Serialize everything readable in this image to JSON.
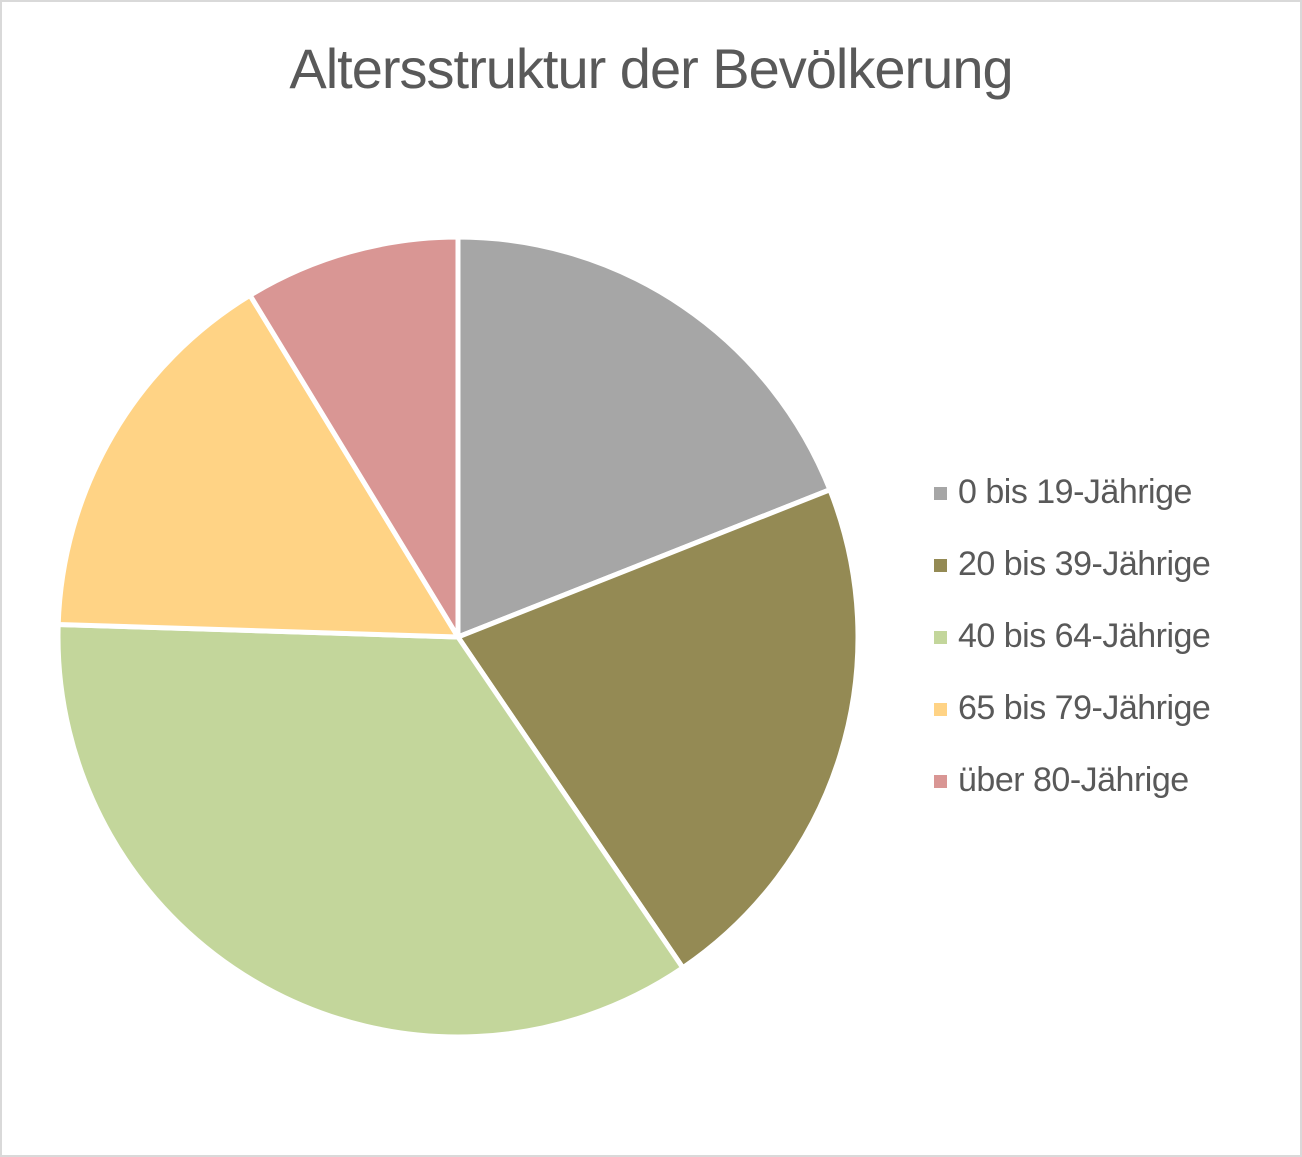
{
  "chart_data": {
    "type": "pie",
    "title": "Altersstruktur der Bevölkerung",
    "categories": [
      "0 bis 19-Jährige",
      "20 bis 39-Jährige",
      "40 bis 64-Jährige",
      "65 bis 79-Jährige",
      "über 80-Jährige"
    ],
    "values": [
      19.0,
      21.5,
      35.0,
      15.8,
      8.7
    ],
    "unit": "percent-of-total",
    "colors": [
      "#A6A6A6",
      "#948A54",
      "#C3D69B",
      "#FFD385",
      "#D99694"
    ],
    "slice_border_color": "#FFFFFF",
    "start_angle_deg": 0,
    "direction": "clockwise",
    "legend_position": "right",
    "data_labels": "none",
    "text_color": "#595959",
    "background_color": "#FFFFFF",
    "frame_border_color": "#D9D9D9"
  }
}
